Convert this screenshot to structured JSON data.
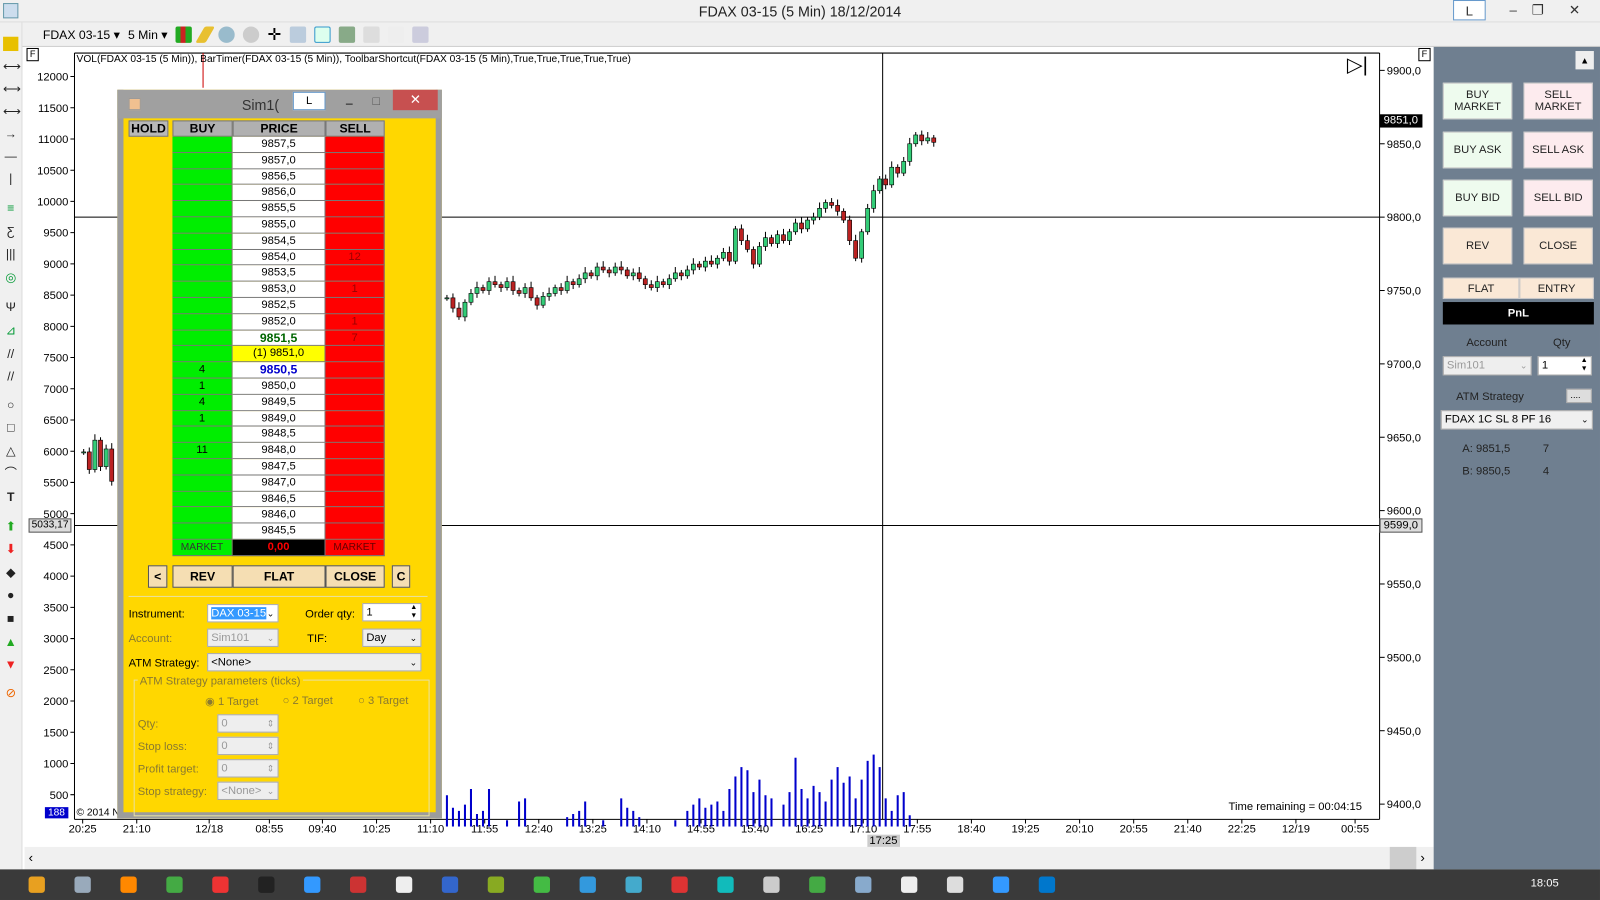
{
  "window": {
    "title": "FDAX 03-15 (5 Min)  18/12/2014",
    "l_button": "L",
    "minimize": "–",
    "restore": "❐",
    "close": "✕"
  },
  "toolbar": {
    "instrument": "FDAX 03-15",
    "interval": "5 Min"
  },
  "chart": {
    "indicator_label": "VOL(FDAX 03-15 (5 Min)), BarTimer(FDAX 03-15 (5 Min)), ToolbarShortcut(FDAX 03-15 (5 Min),True,True,True,True,True)",
    "f_marker": "F",
    "left_axis": [
      "12000",
      "11500",
      "11000",
      "10500",
      "10000",
      "9500",
      "9000",
      "8500",
      "8000",
      "7500",
      "7000",
      "6500",
      "6000",
      "5500",
      "5000",
      "4500",
      "4000",
      "3500",
      "3000",
      "2500",
      "2000",
      "1500",
      "1000",
      "500"
    ],
    "right_axis": [
      "9900,0",
      "9850,0",
      "9800,0",
      "9750,0",
      "9700,0",
      "9650,0",
      "9600,0",
      "9550,0",
      "9500,0",
      "9450,0",
      "9400,0"
    ],
    "time_axis": [
      "20:25",
      "21:10",
      "12/18",
      "08:55",
      "09:40",
      "10:25",
      "11:10",
      "11:55",
      "12:40",
      "13:25",
      "14:10",
      "14:55",
      "15:40",
      "16:25",
      "17:10",
      "17:55",
      "18:40",
      "19:25",
      "20:10",
      "20:55",
      "21:40",
      "22:25",
      "12/19",
      "00:55"
    ],
    "crosshair_time": "17:25",
    "crosshair_left_value": "5033,17",
    "crosshair_right_value": "9599,0",
    "last_price": "9851,0",
    "volume_badge": "188",
    "copyright": "© 2014 N",
    "time_remaining": "Time remaining = 00:04:15"
  },
  "chart_data": {
    "type": "candlestick",
    "price_range": [
      9400,
      9900
    ],
    "volume_range": [
      0,
      12000
    ],
    "bar_interval_minutes": 5,
    "session_start": "11:10",
    "closes": [
      9745,
      9738,
      9732,
      9742,
      9748,
      9752,
      9750,
      9756,
      9754,
      9752,
      9756,
      9750,
      9748,
      9752,
      9745,
      9740,
      9746,
      9748,
      9752,
      9750,
      9756,
      9754,
      9758,
      9762,
      9760,
      9766,
      9764,
      9762,
      9766,
      9764,
      9760,
      9762,
      9758,
      9754,
      9752,
      9756,
      9754,
      9758,
      9762,
      9760,
      9764,
      9768,
      9766,
      9770,
      9768,
      9772,
      9776,
      9770,
      9792,
      9784,
      9778,
      9768,
      9780,
      9786,
      9782,
      9788,
      9784,
      9790,
      9796,
      9792,
      9798,
      9800,
      9806,
      9810,
      9808,
      9804,
      9798,
      9784,
      9772,
      9790,
      9806,
      9818,
      9826,
      9822,
      9834,
      9830,
      9838,
      9850,
      9856,
      9852,
      9854,
      9851
    ],
    "volumes": [
      500,
      300,
      250,
      350,
      600,
      200,
      250,
      600,
      0,
      0,
      100,
      0,
      400,
      450,
      0,
      0,
      0,
      0,
      0,
      0,
      150,
      200,
      250,
      400,
      0,
      0,
      100,
      0,
      0,
      450,
      300,
      250,
      150,
      0,
      0,
      0,
      0,
      0,
      100,
      0,
      250,
      350,
      450,
      300,
      350,
      400,
      250,
      600,
      800,
      950,
      900,
      550,
      750,
      500,
      450,
      0,
      350,
      550,
      1100,
      600,
      450,
      650,
      550,
      400,
      750,
      950,
      700,
      800,
      450,
      750,
      1050,
      1150,
      950,
      450,
      250,
      500,
      550,
      180,
      0,
      0,
      0,
      0
    ],
    "prev_session_closes": [
      9640,
      9628,
      9648,
      9630,
      9642,
      9620
    ]
  },
  "dom": {
    "title": "Sim1(",
    "l_button": "L",
    "headers": {
      "hold": "HOLD",
      "buy": "BUY",
      "price": "PRICE",
      "sell": "SELL"
    },
    "rows": [
      {
        "price": "9857,5",
        "buy": "",
        "sell": ""
      },
      {
        "price": "9857,0",
        "buy": "",
        "sell": ""
      },
      {
        "price": "9856,5",
        "buy": "",
        "sell": ""
      },
      {
        "price": "9856,0",
        "buy": "",
        "sell": ""
      },
      {
        "price": "9855,5",
        "buy": "",
        "sell": ""
      },
      {
        "price": "9855,0",
        "buy": "",
        "sell": ""
      },
      {
        "price": "9854,5",
        "buy": "",
        "sell": ""
      },
      {
        "price": "9854,0",
        "buy": "",
        "sell": "12"
      },
      {
        "price": "9853,5",
        "buy": "",
        "sell": ""
      },
      {
        "price": "9853,0",
        "buy": "",
        "sell": "1"
      },
      {
        "price": "9852,5",
        "buy": "",
        "sell": ""
      },
      {
        "price": "9852,0",
        "buy": "",
        "sell": "1"
      },
      {
        "price": "9851,5",
        "buy": "",
        "sell": "7",
        "style": "ask"
      },
      {
        "price": "(1) 9851,0",
        "buy": "",
        "sell": "",
        "style": "last"
      },
      {
        "price": "9850,5",
        "buy": "4",
        "sell": "",
        "style": "bid"
      },
      {
        "price": "9850,0",
        "buy": "1",
        "sell": ""
      },
      {
        "price": "9849,5",
        "buy": "4",
        "sell": ""
      },
      {
        "price": "9849,0",
        "buy": "1",
        "sell": ""
      },
      {
        "price": "9848,5",
        "buy": "",
        "sell": ""
      },
      {
        "price": "9848,0",
        "buy": "11",
        "sell": ""
      },
      {
        "price": "9847,5",
        "buy": "",
        "sell": ""
      },
      {
        "price": "9847,0",
        "buy": "",
        "sell": ""
      },
      {
        "price": "9846,5",
        "buy": "",
        "sell": ""
      },
      {
        "price": "9846,0",
        "buy": "",
        "sell": ""
      },
      {
        "price": "9845,5",
        "buy": "",
        "sell": ""
      }
    ],
    "market_buy": "MARKET",
    "market_pnl": "0,00",
    "market_sell": "MARKET",
    "buttons": {
      "left": "<",
      "rev": "REV",
      "flat": "FLAT",
      "close": "CLOSE",
      "c": "C"
    },
    "form": {
      "instrument_label": "Instrument:",
      "instrument": "DAX 03-15",
      "order_qty_label": "Order qty:",
      "order_qty": "1",
      "account_label": "Account:",
      "account": "Sim101",
      "tif_label": "TIF:",
      "tif": "Day",
      "atm_label": "ATM Strategy:",
      "atm": "<None>",
      "params_title": "ATM Strategy parameters (ticks)",
      "targets": [
        "1 Target",
        "2 Target",
        "3 Target"
      ],
      "qty_label": "Qty:",
      "qty": "0",
      "stop_loss_label": "Stop loss:",
      "stop_loss": "0",
      "profit_label": "Profit target:",
      "profit": "0",
      "stop_strategy_label": "Stop strategy:",
      "stop_strategy": "<None>"
    }
  },
  "panel": {
    "buy_market": "BUY MARKET",
    "sell_market": "SELL MARKET",
    "buy_ask": "BUY ASK",
    "sell_ask": "SELL ASK",
    "buy_bid": "BUY BID",
    "sell_bid": "SELL BID",
    "rev": "REV",
    "close": "CLOSE",
    "flat": "FLAT",
    "entry": "ENTRY",
    "pnl": "PnL",
    "account_label": "Account",
    "qty_label": "Qty",
    "account": "Sim101",
    "qty": "1",
    "atm_label": "ATM Strategy",
    "atm_btn": "....",
    "atm": "FDAX 1C SL 8 PF 16",
    "ask": "A: 9851,5",
    "ask_size": "7",
    "bid": "B: 9850,5",
    "bid_size": "4"
  },
  "taskbar": {
    "clock": "18:05"
  }
}
